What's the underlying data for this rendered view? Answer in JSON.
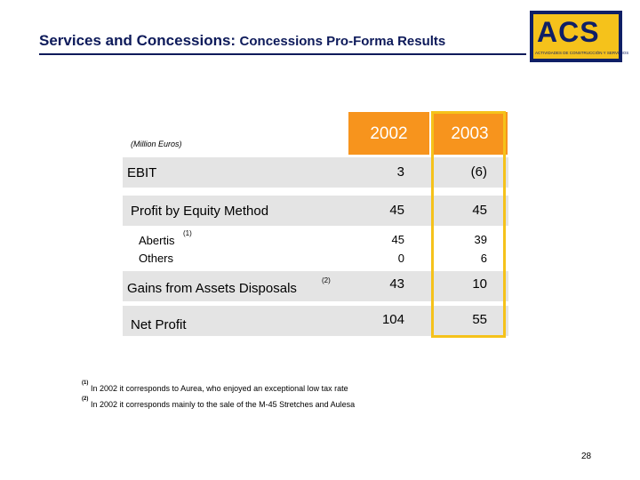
{
  "header": {
    "title_part1": "Services and Concessions:",
    "title_part2": "Concessions Pro-Forma Results"
  },
  "logo": {
    "text": "ACS",
    "subtext": "ACTIVIDADES DE CONSTRUCCIÓN Y SERVICIOS"
  },
  "table": {
    "unit_label": "(Million Euros)",
    "columns": [
      "2002",
      "2003"
    ],
    "rows": {
      "ebit": {
        "label": "EBIT",
        "v2002": "3",
        "v2003": "(6)"
      },
      "equity": {
        "label": "Profit by Equity Method",
        "v2002": "45",
        "v2003": "45"
      },
      "abertis": {
        "label": "Abertis",
        "sup": "(1)",
        "v2002": "45",
        "v2003": "39"
      },
      "others": {
        "label": "Others",
        "v2002": "0",
        "v2003": "6"
      },
      "gains": {
        "label": "Gains from Assets Disposals",
        "sup": "(2)",
        "v2002": "43",
        "v2003": "10"
      },
      "net": {
        "label": "Net Profit",
        "v2002": "104",
        "v2003": "55"
      }
    }
  },
  "footnotes": [
    {
      "mark": "(1)",
      "text": "In 2002 it corresponds to Aurea, who enjoyed an exceptional low tax rate"
    },
    {
      "mark": "(2)",
      "text": "In 2002 it corresponds mainly to the sale of the M-45 Stretches and Aulesa"
    }
  ],
  "page_number": "28",
  "colors": {
    "title": "#0d1a5a",
    "header_orange": "#f7941d",
    "highlight_yellow": "#f5c21b",
    "band_grey": "#e4e4e4",
    "logo_blue": "#0f1f66"
  }
}
